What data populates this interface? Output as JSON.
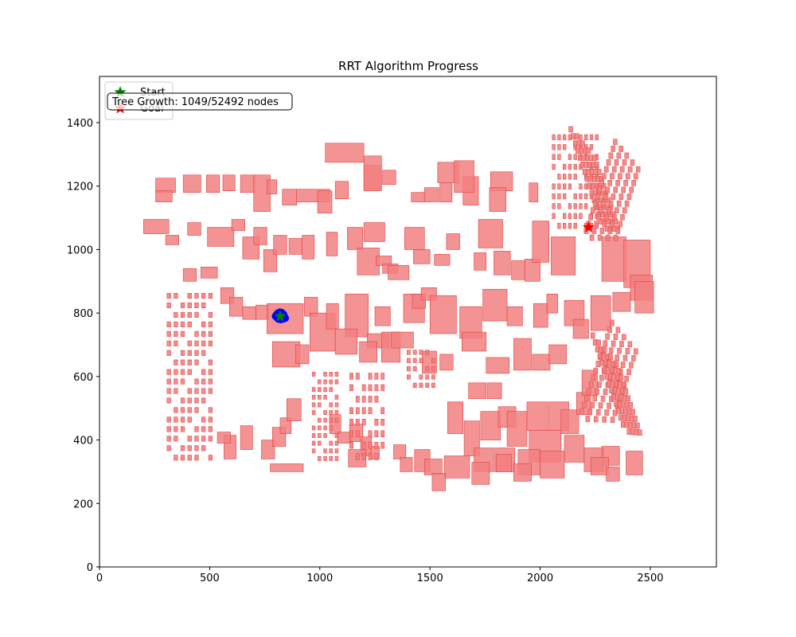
{
  "chart_data": {
    "type": "scatter",
    "title": "RRT Algorithm Progress",
    "xlabel": "",
    "ylabel": "",
    "xlim": [
      0,
      2800
    ],
    "ylim": [
      0,
      1400
    ],
    "xticks": [
      0,
      500,
      1000,
      1500,
      2000,
      2500
    ],
    "yticks": [
      0,
      200,
      400,
      600,
      800,
      1000,
      1200,
      1400
    ],
    "grid": false,
    "legend_placement": "top-left",
    "legend": [
      {
        "name": "Start",
        "marker": "star",
        "color": "#008000"
      },
      {
        "name": "Goal",
        "marker": "star",
        "color": "#ff0000"
      }
    ],
    "annotation": "Tree Growth: 1049/52492 nodes",
    "start": {
      "x": 820,
      "y": 790
    },
    "goal": {
      "x": 2220,
      "y": 1070
    },
    "tree_color": "#0000ff",
    "obstacle_color": "#f28080",
    "obstacle_edge_color": "#e04040",
    "tree_points": [
      {
        "x": 805,
        "y": 795
      },
      {
        "x": 812,
        "y": 800
      },
      {
        "x": 820,
        "y": 802
      },
      {
        "x": 828,
        "y": 800
      },
      {
        "x": 835,
        "y": 795
      },
      {
        "x": 838,
        "y": 788
      },
      {
        "x": 832,
        "y": 782
      },
      {
        "x": 822,
        "y": 780
      },
      {
        "x": 812,
        "y": 782
      },
      {
        "x": 806,
        "y": 787
      },
      {
        "x": 818,
        "y": 790
      },
      {
        "x": 826,
        "y": 792
      },
      {
        "x": 814,
        "y": 796
      },
      {
        "x": 830,
        "y": 786
      },
      {
        "x": 842,
        "y": 784
      },
      {
        "x": 800,
        "y": 790
      }
    ],
    "obstacles": [
      {
        "x": 255,
        "y": 1180,
        "w": 90,
        "h": 45
      },
      {
        "x": 255,
        "y": 1150,
        "w": 75,
        "h": 35
      },
      {
        "x": 380,
        "y": 1180,
        "w": 80,
        "h": 55
      },
      {
        "x": 485,
        "y": 1180,
        "w": 60,
        "h": 55
      },
      {
        "x": 560,
        "y": 1185,
        "w": 55,
        "h": 50
      },
      {
        "x": 640,
        "y": 1180,
        "w": 65,
        "h": 55
      },
      {
        "x": 700,
        "y": 1120,
        "w": 75,
        "h": 115
      },
      {
        "x": 760,
        "y": 1175,
        "w": 45,
        "h": 45
      },
      {
        "x": 830,
        "y": 1140,
        "w": 65,
        "h": 50
      },
      {
        "x": 895,
        "y": 1150,
        "w": 150,
        "h": 40
      },
      {
        "x": 990,
        "y": 1115,
        "w": 65,
        "h": 70
      },
      {
        "x": 1070,
        "y": 1160,
        "w": 60,
        "h": 55
      },
      {
        "x": 1200,
        "y": 1190,
        "w": 80,
        "h": 75
      },
      {
        "x": 1285,
        "y": 1205,
        "w": 60,
        "h": 45
      },
      {
        "x": 1415,
        "y": 1150,
        "w": 60,
        "h": 30
      },
      {
        "x": 1475,
        "y": 1150,
        "w": 65,
        "h": 45
      },
      {
        "x": 1545,
        "y": 1150,
        "w": 55,
        "h": 60
      },
      {
        "x": 1650,
        "y": 1140,
        "w": 70,
        "h": 90
      },
      {
        "x": 1775,
        "y": 1185,
        "w": 100,
        "h": 60
      },
      {
        "x": 1770,
        "y": 1120,
        "w": 75,
        "h": 75
      },
      {
        "x": 1535,
        "y": 1210,
        "w": 95,
        "h": 65
      },
      {
        "x": 1610,
        "y": 1180,
        "w": 90,
        "h": 100
      },
      {
        "x": 1950,
        "y": 1150,
        "w": 40,
        "h": 60
      },
      {
        "x": 1025,
        "y": 1275,
        "w": 175,
        "h": 60
      },
      {
        "x": 1200,
        "y": 1185,
        "w": 80,
        "h": 110
      },
      {
        "x": 200,
        "y": 1050,
        "w": 115,
        "h": 45
      },
      {
        "x": 300,
        "y": 1015,
        "w": 60,
        "h": 30
      },
      {
        "x": 400,
        "y": 1045,
        "w": 60,
        "h": 40
      },
      {
        "x": 490,
        "y": 1010,
        "w": 120,
        "h": 60
      },
      {
        "x": 600,
        "y": 1060,
        "w": 60,
        "h": 35
      },
      {
        "x": 650,
        "y": 970,
        "w": 75,
        "h": 70
      },
      {
        "x": 700,
        "y": 1015,
        "w": 60,
        "h": 55
      },
      {
        "x": 745,
        "y": 930,
        "w": 60,
        "h": 70
      },
      {
        "x": 790,
        "y": 985,
        "w": 60,
        "h": 60
      },
      {
        "x": 860,
        "y": 985,
        "w": 60,
        "h": 50
      },
      {
        "x": 920,
        "y": 970,
        "w": 55,
        "h": 75
      },
      {
        "x": 1030,
        "y": 980,
        "w": 50,
        "h": 75
      },
      {
        "x": 1125,
        "y": 1000,
        "w": 70,
        "h": 70
      },
      {
        "x": 1170,
        "y": 920,
        "w": 100,
        "h": 85
      },
      {
        "x": 1200,
        "y": 1025,
        "w": 95,
        "h": 60
      },
      {
        "x": 1385,
        "y": 1000,
        "w": 90,
        "h": 70
      },
      {
        "x": 1255,
        "y": 950,
        "w": 70,
        "h": 30
      },
      {
        "x": 1285,
        "y": 925,
        "w": 70,
        "h": 30
      },
      {
        "x": 1310,
        "y": 905,
        "w": 95,
        "h": 45
      },
      {
        "x": 1425,
        "y": 955,
        "w": 75,
        "h": 45
      },
      {
        "x": 1520,
        "y": 950,
        "w": 70,
        "h": 35
      },
      {
        "x": 1575,
        "y": 1000,
        "w": 60,
        "h": 50
      },
      {
        "x": 1720,
        "y": 1005,
        "w": 110,
        "h": 90
      },
      {
        "x": 1700,
        "y": 935,
        "w": 55,
        "h": 55
      },
      {
        "x": 1790,
        "y": 920,
        "w": 75,
        "h": 75
      },
      {
        "x": 1870,
        "y": 905,
        "w": 60,
        "h": 60
      },
      {
        "x": 1930,
        "y": 900,
        "w": 70,
        "h": 70
      },
      {
        "x": 1965,
        "y": 960,
        "w": 75,
        "h": 130
      },
      {
        "x": 2050,
        "y": 920,
        "w": 110,
        "h": 120
      },
      {
        "x": 2280,
        "y": 900,
        "w": 110,
        "h": 140
      },
      {
        "x": 2380,
        "y": 880,
        "w": 120,
        "h": 150
      },
      {
        "x": 2410,
        "y": 840,
        "w": 100,
        "h": 80
      },
      {
        "x": 380,
        "y": 900,
        "w": 60,
        "h": 40
      },
      {
        "x": 460,
        "y": 910,
        "w": 75,
        "h": 35
      },
      {
        "x": 550,
        "y": 830,
        "w": 60,
        "h": 50
      },
      {
        "x": 590,
        "y": 790,
        "w": 60,
        "h": 60
      },
      {
        "x": 650,
        "y": 780,
        "w": 60,
        "h": 40
      },
      {
        "x": 710,
        "y": 780,
        "w": 60,
        "h": 45
      },
      {
        "x": 760,
        "y": 735,
        "w": 165,
        "h": 95
      },
      {
        "x": 930,
        "y": 790,
        "w": 60,
        "h": 60
      },
      {
        "x": 955,
        "y": 680,
        "w": 115,
        "h": 120
      },
      {
        "x": 1030,
        "y": 750,
        "w": 55,
        "h": 80
      },
      {
        "x": 1115,
        "y": 725,
        "w": 105,
        "h": 135
      },
      {
        "x": 1215,
        "y": 690,
        "w": 100,
        "h": 45
      },
      {
        "x": 1250,
        "y": 760,
        "w": 70,
        "h": 60
      },
      {
        "x": 1380,
        "y": 770,
        "w": 95,
        "h": 90
      },
      {
        "x": 1420,
        "y": 815,
        "w": 60,
        "h": 45
      },
      {
        "x": 1460,
        "y": 840,
        "w": 70,
        "h": 40
      },
      {
        "x": 1500,
        "y": 735,
        "w": 120,
        "h": 120
      },
      {
        "x": 1635,
        "y": 720,
        "w": 100,
        "h": 100
      },
      {
        "x": 1740,
        "y": 775,
        "w": 110,
        "h": 100
      },
      {
        "x": 1850,
        "y": 760,
        "w": 70,
        "h": 60
      },
      {
        "x": 1970,
        "y": 755,
        "w": 65,
        "h": 75
      },
      {
        "x": 2030,
        "y": 800,
        "w": 50,
        "h": 60
      },
      {
        "x": 2110,
        "y": 760,
        "w": 90,
        "h": 80
      },
      {
        "x": 2150,
        "y": 720,
        "w": 70,
        "h": 60
      },
      {
        "x": 2230,
        "y": 745,
        "w": 90,
        "h": 110
      },
      {
        "x": 2330,
        "y": 805,
        "w": 80,
        "h": 60
      },
      {
        "x": 2430,
        "y": 800,
        "w": 85,
        "h": 100
      },
      {
        "x": 785,
        "y": 630,
        "w": 125,
        "h": 80
      },
      {
        "x": 890,
        "y": 640,
        "w": 60,
        "h": 60
      },
      {
        "x": 1070,
        "y": 670,
        "w": 100,
        "h": 80
      },
      {
        "x": 1180,
        "y": 645,
        "w": 80,
        "h": 65
      },
      {
        "x": 1280,
        "y": 645,
        "w": 85,
        "h": 95
      },
      {
        "x": 1325,
        "y": 690,
        "w": 100,
        "h": 50
      },
      {
        "x": 1465,
        "y": 610,
        "w": 65,
        "h": 70
      },
      {
        "x": 1545,
        "y": 620,
        "w": 60,
        "h": 50
      },
      {
        "x": 1645,
        "y": 680,
        "w": 110,
        "h": 60
      },
      {
        "x": 1755,
        "y": 610,
        "w": 105,
        "h": 50
      },
      {
        "x": 1880,
        "y": 620,
        "w": 80,
        "h": 100
      },
      {
        "x": 1965,
        "y": 620,
        "w": 80,
        "h": 50
      },
      {
        "x": 2040,
        "y": 640,
        "w": 80,
        "h": 60
      },
      {
        "x": 1675,
        "y": 530,
        "w": 80,
        "h": 50
      },
      {
        "x": 1760,
        "y": 530,
        "w": 65,
        "h": 50
      },
      {
        "x": 1730,
        "y": 400,
        "w": 90,
        "h": 90
      },
      {
        "x": 1810,
        "y": 440,
        "w": 80,
        "h": 65
      },
      {
        "x": 1950,
        "y": 330,
        "w": 145,
        "h": 100
      },
      {
        "x": 2040,
        "y": 430,
        "w": 90,
        "h": 90
      },
      {
        "x": 2095,
        "y": 420,
        "w": 80,
        "h": 75
      },
      {
        "x": 2165,
        "y": 480,
        "w": 65,
        "h": 70
      },
      {
        "x": 2190,
        "y": 540,
        "w": 70,
        "h": 80
      },
      {
        "x": 1850,
        "y": 380,
        "w": 90,
        "h": 110
      },
      {
        "x": 1940,
        "y": 430,
        "w": 95,
        "h": 90
      },
      {
        "x": 1580,
        "y": 420,
        "w": 70,
        "h": 100
      },
      {
        "x": 1655,
        "y": 350,
        "w": 70,
        "h": 110
      },
      {
        "x": 1700,
        "y": 300,
        "w": 90,
        "h": 75
      },
      {
        "x": 1795,
        "y": 300,
        "w": 90,
        "h": 75
      },
      {
        "x": 1900,
        "y": 290,
        "w": 100,
        "h": 80
      },
      {
        "x": 2000,
        "y": 280,
        "w": 110,
        "h": 85
      },
      {
        "x": 2110,
        "y": 330,
        "w": 90,
        "h": 85
      },
      {
        "x": 2200,
        "y": 300,
        "w": 90,
        "h": 75
      },
      {
        "x": 2280,
        "y": 320,
        "w": 80,
        "h": 60
      },
      {
        "x": 1565,
        "y": 280,
        "w": 115,
        "h": 70
      },
      {
        "x": 1690,
        "y": 260,
        "w": 80,
        "h": 70
      },
      {
        "x": 1800,
        "y": 300,
        "w": 70,
        "h": 55
      },
      {
        "x": 1880,
        "y": 270,
        "w": 80,
        "h": 55
      },
      {
        "x": 2230,
        "y": 290,
        "w": 80,
        "h": 55
      },
      {
        "x": 2300,
        "y": 270,
        "w": 60,
        "h": 45
      },
      {
        "x": 2390,
        "y": 290,
        "w": 75,
        "h": 75
      },
      {
        "x": 565,
        "y": 340,
        "w": 55,
        "h": 75
      },
      {
        "x": 535,
        "y": 390,
        "w": 60,
        "h": 35
      },
      {
        "x": 640,
        "y": 370,
        "w": 55,
        "h": 75
      },
      {
        "x": 735,
        "y": 340,
        "w": 60,
        "h": 60
      },
      {
        "x": 785,
        "y": 380,
        "w": 60,
        "h": 60
      },
      {
        "x": 820,
        "y": 420,
        "w": 50,
        "h": 50
      },
      {
        "x": 850,
        "y": 460,
        "w": 65,
        "h": 70
      },
      {
        "x": 1045,
        "y": 420,
        "w": 50,
        "h": 60
      },
      {
        "x": 1080,
        "y": 390,
        "w": 65,
        "h": 35
      },
      {
        "x": 1135,
        "y": 395,
        "w": 60,
        "h": 55
      },
      {
        "x": 1185,
        "y": 350,
        "w": 50,
        "h": 60
      },
      {
        "x": 1230,
        "y": 340,
        "w": 40,
        "h": 40
      },
      {
        "x": 1335,
        "y": 340,
        "w": 55,
        "h": 45
      },
      {
        "x": 1365,
        "y": 300,
        "w": 55,
        "h": 45
      },
      {
        "x": 1430,
        "y": 300,
        "w": 70,
        "h": 70
      },
      {
        "x": 1475,
        "y": 290,
        "w": 80,
        "h": 50
      },
      {
        "x": 1510,
        "y": 240,
        "w": 60,
        "h": 55
      },
      {
        "x": 775,
        "y": 300,
        "w": 150,
        "h": 25
      },
      {
        "x": 1130,
        "y": 315,
        "w": 80,
        "h": 55
      }
    ],
    "small_blocks": [
      {
        "x0": 300,
        "y0": 330,
        "x1": 520,
        "y1": 870,
        "cols": 7,
        "rows": 18
      },
      {
        "x0": 960,
        "y0": 330,
        "x1": 1090,
        "y1": 620,
        "cols": 5,
        "rows": 12
      },
      {
        "x0": 1130,
        "y0": 330,
        "x1": 1300,
        "y1": 620,
        "cols": 6,
        "rows": 8
      },
      {
        "x0": 1390,
        "y0": 560,
        "x1": 1530,
        "y1": 690,
        "cols": 5,
        "rows": 5
      },
      {
        "x0": 2050,
        "y0": 1060,
        "x1": 2270,
        "y1": 1370,
        "cols": 9,
        "rows": 10
      }
    ],
    "diag_bands": [
      {
        "x0": 2180,
        "y0": 480,
        "x1": 2430,
        "y1": 760,
        "dir": 1
      },
      {
        "x0": 2230,
        "y0": 440,
        "x1": 2480,
        "y1": 720,
        "dir": -1
      },
      {
        "x0": 2130,
        "y0": 1080,
        "x1": 2380,
        "y1": 1370,
        "dir": -1
      },
      {
        "x0": 2200,
        "y0": 1050,
        "x1": 2440,
        "y1": 1330,
        "dir": 1
      }
    ]
  }
}
